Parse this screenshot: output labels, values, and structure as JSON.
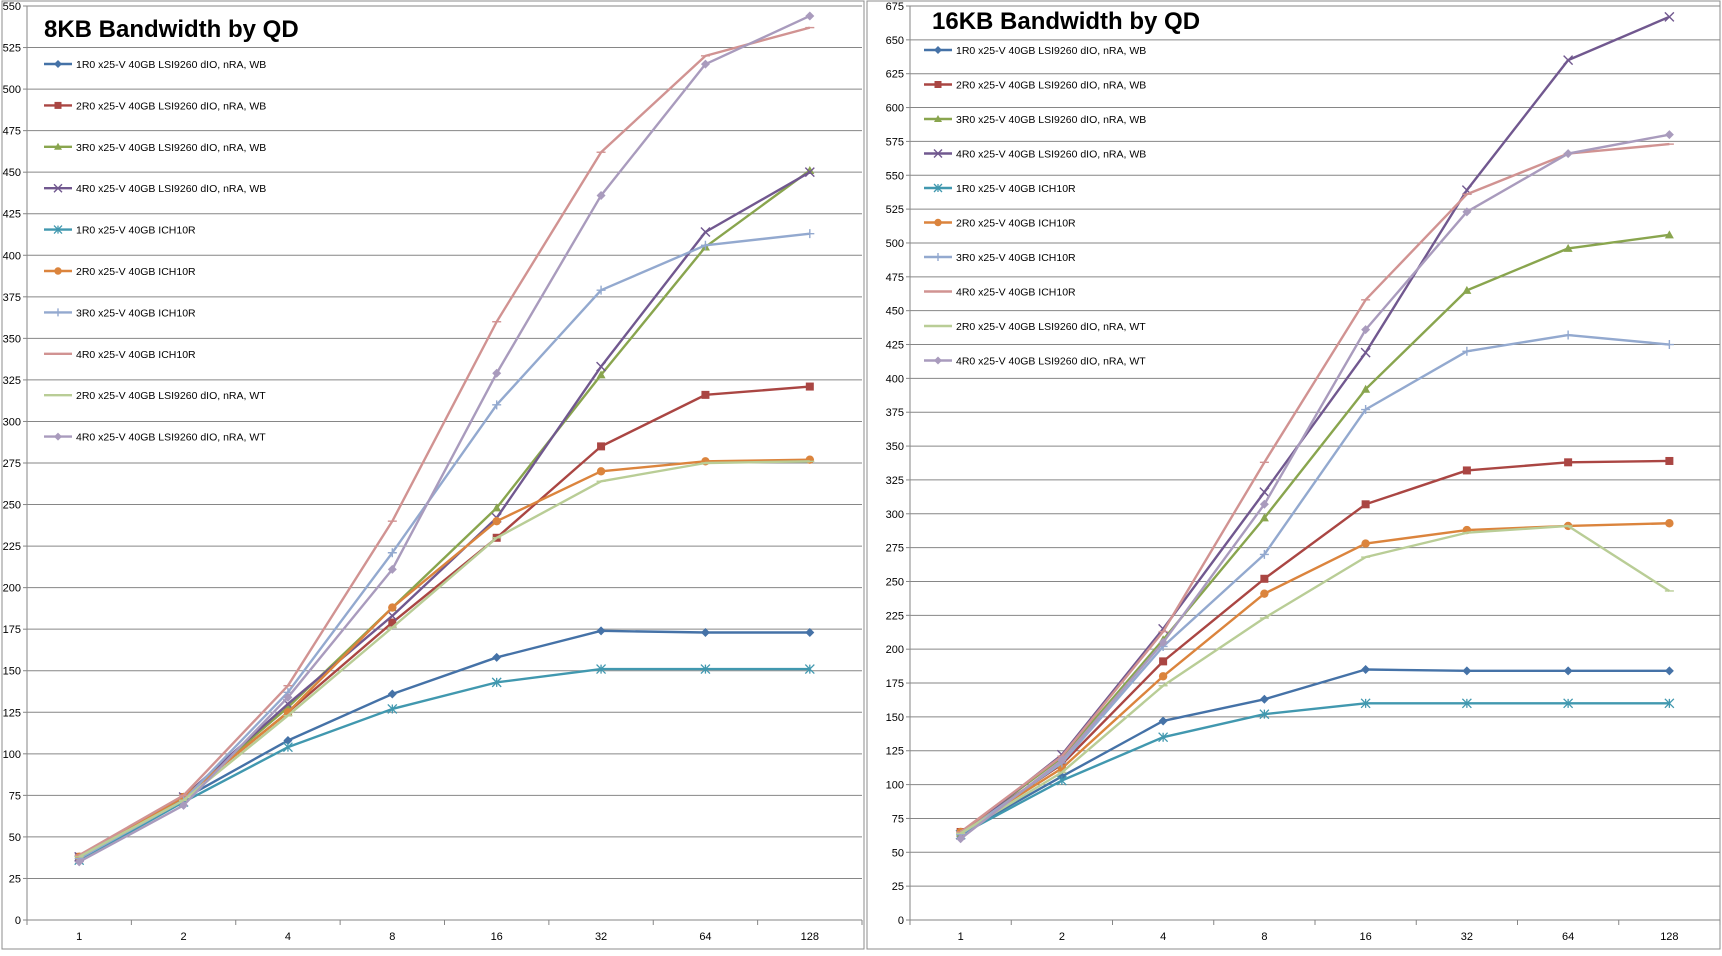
{
  "chart_data": [
    {
      "type": "line",
      "title": "8KB Bandwidth by QD",
      "xlabel": "",
      "ylabel": "",
      "x": [
        "1",
        "2",
        "4",
        "8",
        "16",
        "32",
        "64",
        "128"
      ],
      "ylim": [
        0,
        550
      ],
      "yticks": [
        0,
        25,
        50,
        75,
        100,
        125,
        150,
        175,
        200,
        225,
        250,
        275,
        300,
        325,
        350,
        375,
        400,
        425,
        450,
        475,
        500,
        525,
        550
      ],
      "grid": true,
      "legend_position": "top-left",
      "series": [
        {
          "name": "1R0 x25-V 40GB LSI9260 dIO, nRA, WB",
          "color": "#4572A7",
          "marker": "diamond",
          "values": [
            37,
            73,
            108,
            136,
            158,
            174,
            173,
            173
          ]
        },
        {
          "name": "2R0 x25-V 40GB LSI9260 dIO, nRA, WB",
          "color": "#AA4643",
          "marker": "square",
          "values": [
            38,
            74,
            125,
            179,
            230,
            285,
            316,
            321
          ]
        },
        {
          "name": "3R0 x25-V 40GB LSI9260 dIO, nRA, WB",
          "color": "#89A54E",
          "marker": "triangle",
          "values": [
            38,
            74,
            128,
            188,
            248,
            328,
            405,
            451
          ]
        },
        {
          "name": "4R0 x25-V 40GB LSI9260 dIO, nRA, WB",
          "color": "#71588F",
          "marker": "x",
          "values": [
            38,
            74,
            130,
            183,
            242,
            333,
            414,
            450
          ]
        },
        {
          "name": "1R0 x25-V 40GB ICH10R",
          "color": "#4198AF",
          "marker": "star",
          "values": [
            36,
            71,
            104,
            127,
            143,
            151,
            151,
            151
          ]
        },
        {
          "name": "2R0 x25-V 40GB ICH10R",
          "color": "#DB843D",
          "marker": "circle",
          "values": [
            38,
            74,
            125,
            188,
            240,
            270,
            276,
            277
          ]
        },
        {
          "name": "3R0 x25-V 40GB ICH10R",
          "color": "#93A9CF",
          "marker": "plus",
          "values": [
            37,
            72,
            137,
            221,
            310,
            379,
            406,
            413
          ]
        },
        {
          "name": "4R0 x25-V 40GB ICH10R",
          "color": "#D19392",
          "marker": "dash",
          "values": [
            39,
            75,
            141,
            240,
            360,
            462,
            520,
            537
          ]
        },
        {
          "name": "2R0 x25-V 40GB LSI9260 dIO, nRA, WT",
          "color": "#B9CD96",
          "marker": "dash",
          "values": [
            38,
            72,
            123,
            176,
            230,
            264,
            275,
            276
          ]
        },
        {
          "name": "4R0 x25-V 40GB LSI9260 dIO, nRA, WT",
          "color": "#A99BBD",
          "marker": "diamond",
          "values": [
            35,
            69,
            134,
            211,
            329,
            436,
            515,
            544
          ]
        }
      ]
    },
    {
      "type": "line",
      "title": "16KB Bandwidth by QD",
      "xlabel": "",
      "ylabel": "",
      "x": [
        "1",
        "2",
        "4",
        "8",
        "16",
        "32",
        "64",
        "128"
      ],
      "ylim": [
        0,
        675
      ],
      "yticks": [
        0,
        25,
        50,
        75,
        100,
        125,
        150,
        175,
        200,
        225,
        250,
        275,
        300,
        325,
        350,
        375,
        400,
        425,
        450,
        475,
        500,
        525,
        550,
        575,
        600,
        625,
        650,
        675
      ],
      "grid": true,
      "legend_position": "top-left",
      "series": [
        {
          "name": "1R0 x25-V 40GB LSI9260 dIO, nRA, WB",
          "color": "#4572A7",
          "marker": "diamond",
          "values": [
            64,
            106,
            147,
            163,
            185,
            184,
            184,
            184
          ]
        },
        {
          "name": "2R0 x25-V 40GB LSI9260 dIO, nRA, WB",
          "color": "#AA4643",
          "marker": "square",
          "values": [
            65,
            115,
            191,
            252,
            307,
            332,
            338,
            339
          ]
        },
        {
          "name": "3R0 x25-V 40GB LSI9260 dIO, nRA, WB",
          "color": "#89A54E",
          "marker": "triangle",
          "values": [
            64,
            120,
            207,
            297,
            392,
            465,
            496,
            506
          ]
        },
        {
          "name": "4R0 x25-V 40GB LSI9260 dIO, nRA, WB",
          "color": "#71588F",
          "marker": "x",
          "values": [
            63,
            122,
            215,
            316,
            419,
            539,
            635,
            667
          ]
        },
        {
          "name": "1R0 x25-V 40GB ICH10R",
          "color": "#4198AF",
          "marker": "star",
          "values": [
            63,
            103,
            135,
            152,
            160,
            160,
            160,
            160
          ]
        },
        {
          "name": "2R0 x25-V 40GB ICH10R",
          "color": "#DB843D",
          "marker": "circle",
          "values": [
            65,
            112,
            180,
            241,
            278,
            288,
            291,
            293
          ]
        },
        {
          "name": "3R0 x25-V 40GB ICH10R",
          "color": "#93A9CF",
          "marker": "plus",
          "values": [
            63,
            116,
            202,
            270,
            377,
            420,
            432,
            425
          ]
        },
        {
          "name": "4R0 x25-V 40GB ICH10R",
          "color": "#D19392",
          "marker": "dash",
          "values": [
            65,
            121,
            213,
            338,
            458,
            536,
            566,
            573
          ]
        },
        {
          "name": "2R0 x25-V 40GB LSI9260 dIO, nRA, WT",
          "color": "#B9CD96",
          "marker": "dash",
          "values": [
            64,
            109,
            173,
            223,
            268,
            286,
            291,
            243
          ]
        },
        {
          "name": "4R0 x25-V 40GB LSI9260 dIO, nRA, WT",
          "color": "#A99BBD",
          "marker": "diamond",
          "values": [
            60,
            118,
            205,
            307,
            436,
            523,
            566,
            580
          ]
        }
      ]
    }
  ]
}
